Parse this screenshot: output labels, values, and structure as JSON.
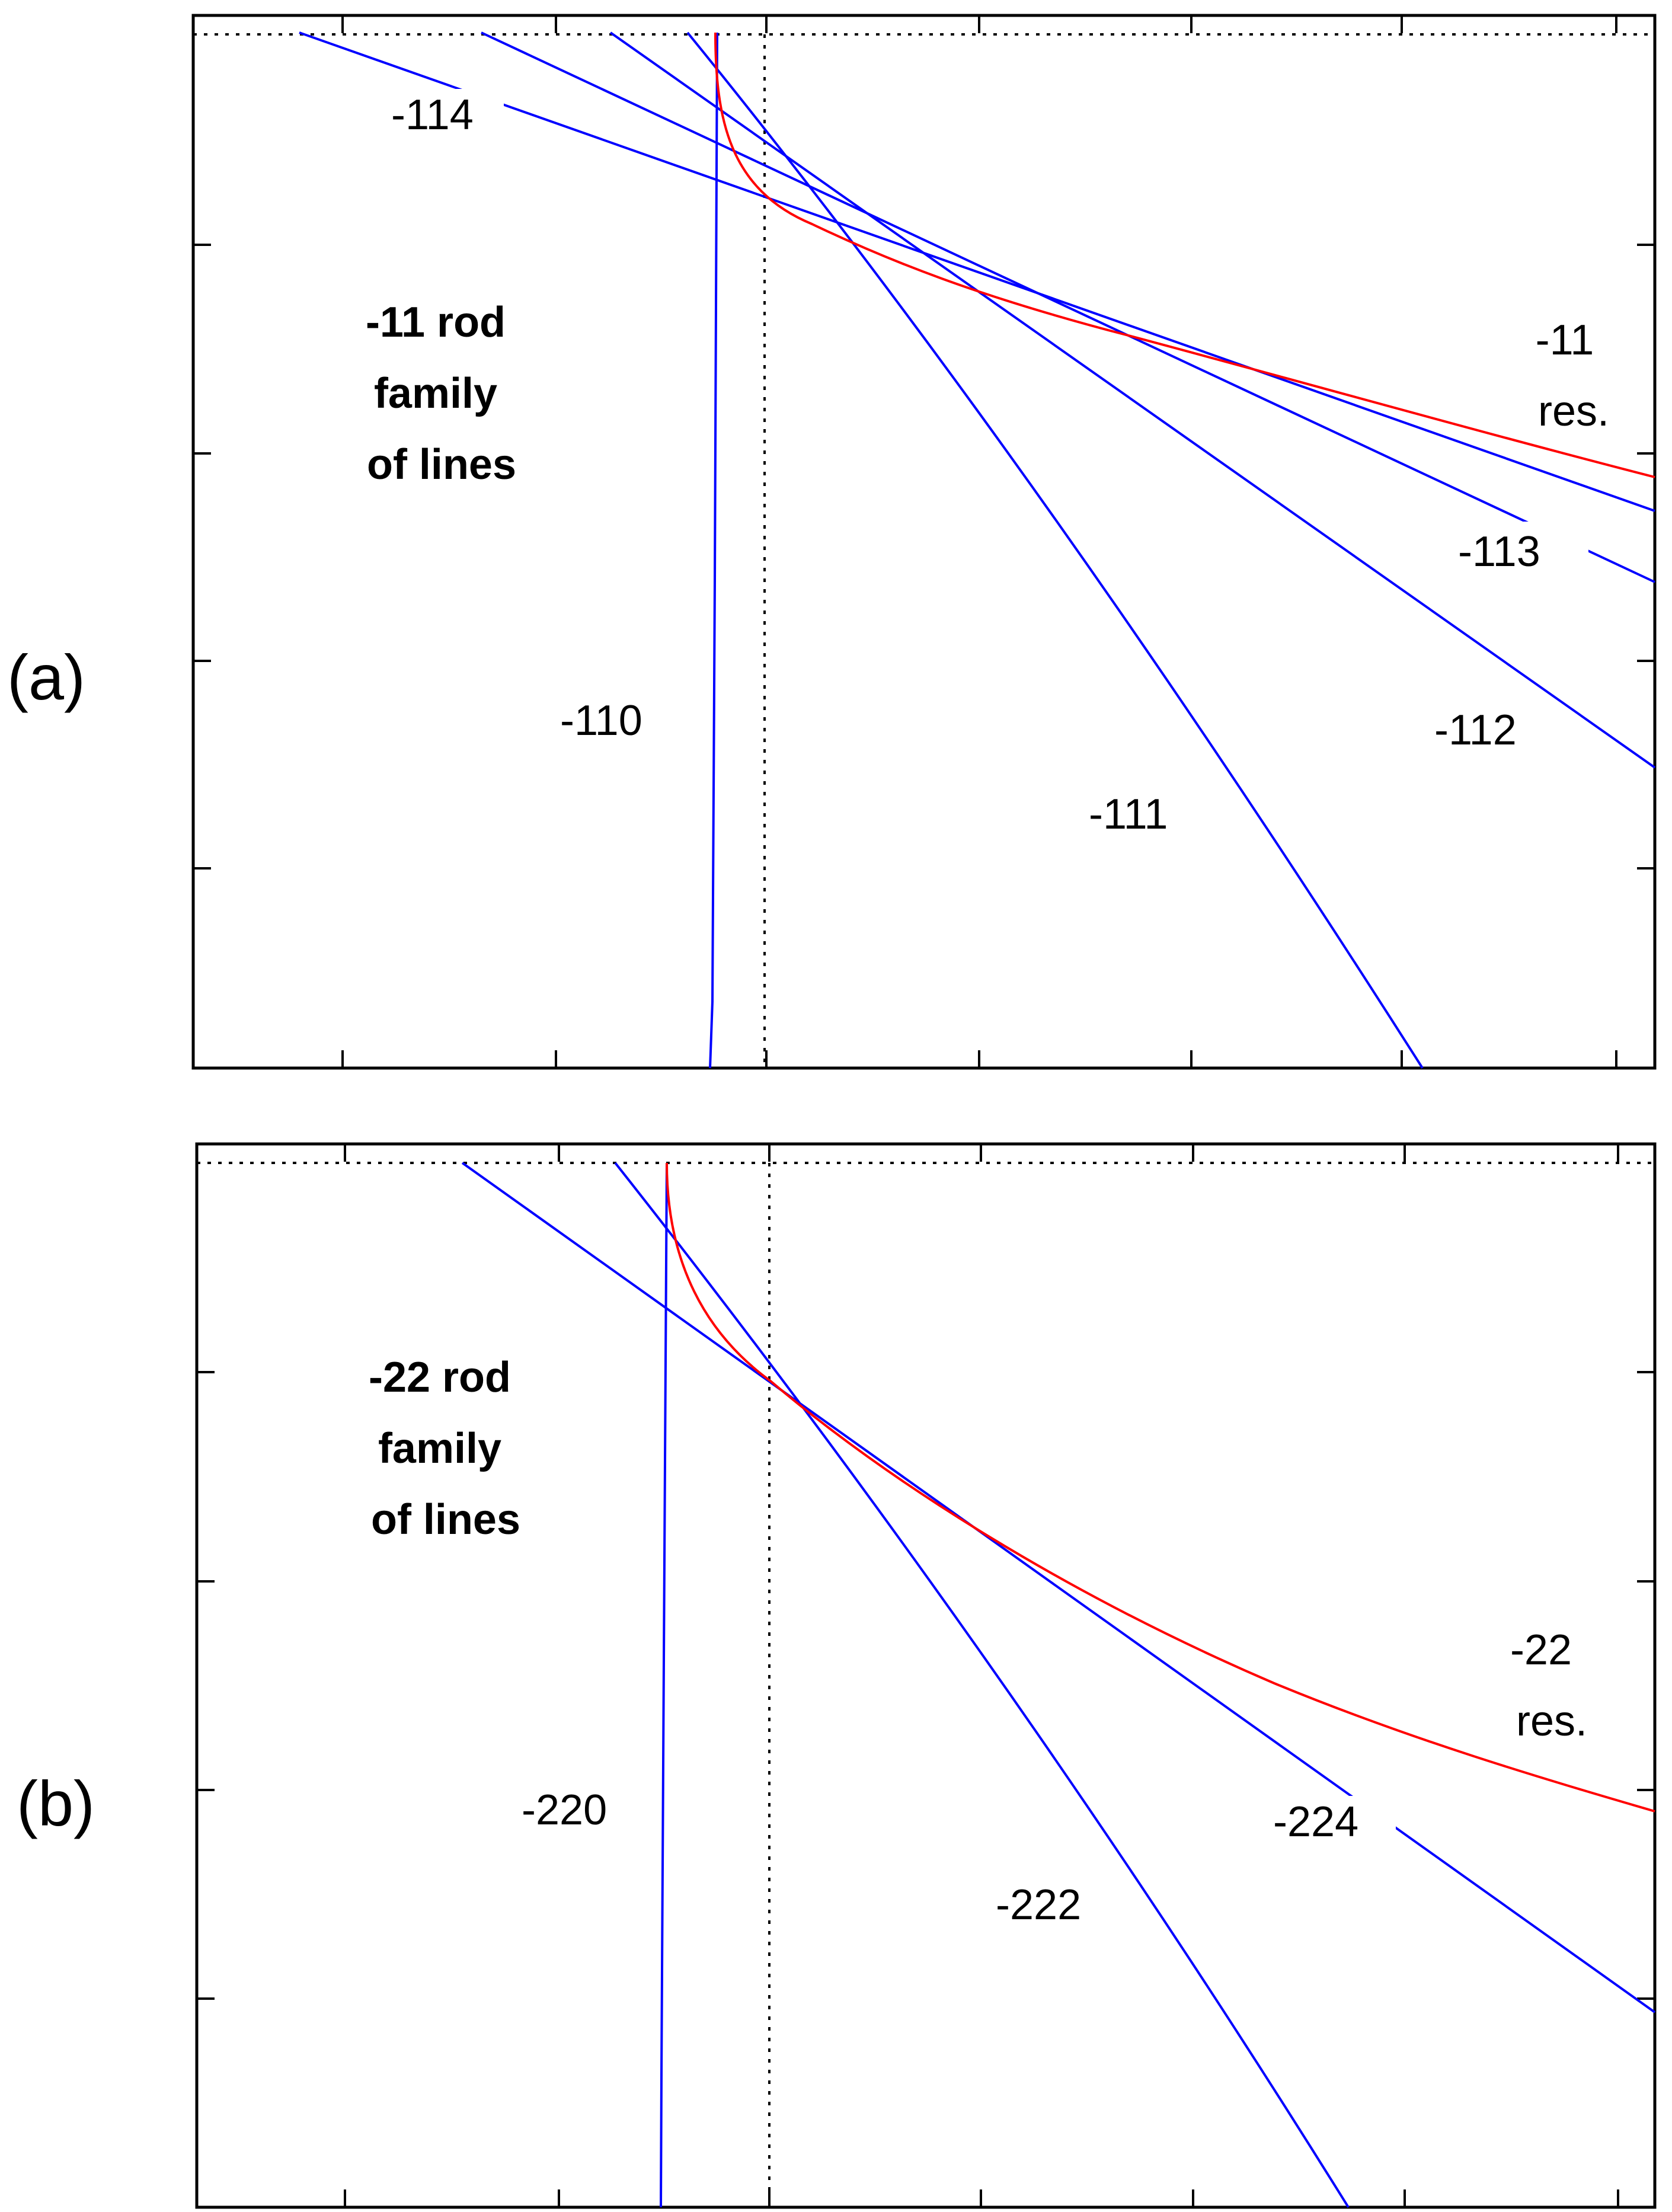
{
  "figure": {
    "panels": [
      {
        "id": "a",
        "panel_label": "(a)",
        "title_lines": [
          "-11 rod",
          "family",
          "of lines"
        ],
        "curves": [
          {
            "name": "-11 res.",
            "label_lines": [
              "-11",
              "res."
            ],
            "color": "#ff0000",
            "kind": "resonance"
          },
          {
            "name": "-110",
            "label_lines": [
              "-110"
            ],
            "color": "#0000ff",
            "kind": "line"
          },
          {
            "name": "-111",
            "label_lines": [
              "-111"
            ],
            "color": "#0000ff",
            "kind": "line"
          },
          {
            "name": "-112",
            "label_lines": [
              "-112"
            ],
            "color": "#0000ff",
            "kind": "line"
          },
          {
            "name": "-113",
            "label_lines": [
              "-113"
            ],
            "color": "#0000ff",
            "kind": "line"
          },
          {
            "name": "-114",
            "label_lines": [
              "-114"
            ],
            "color": "#0000ff",
            "kind": "line"
          }
        ]
      },
      {
        "id": "b",
        "panel_label": "(b)",
        "title_lines": [
          "-22 rod",
          "family",
          "of lines"
        ],
        "curves": [
          {
            "name": "-22 res.",
            "label_lines": [
              "-22",
              "res."
            ],
            "color": "#ff0000",
            "kind": "resonance"
          },
          {
            "name": "-220",
            "label_lines": [
              "-220"
            ],
            "color": "#0000ff",
            "kind": "line"
          },
          {
            "name": "-222",
            "label_lines": [
              "-222"
            ],
            "color": "#0000ff",
            "kind": "line"
          },
          {
            "name": "-224",
            "label_lines": [
              "-224"
            ],
            "color": "#0000ff",
            "kind": "line"
          }
        ]
      }
    ]
  }
}
